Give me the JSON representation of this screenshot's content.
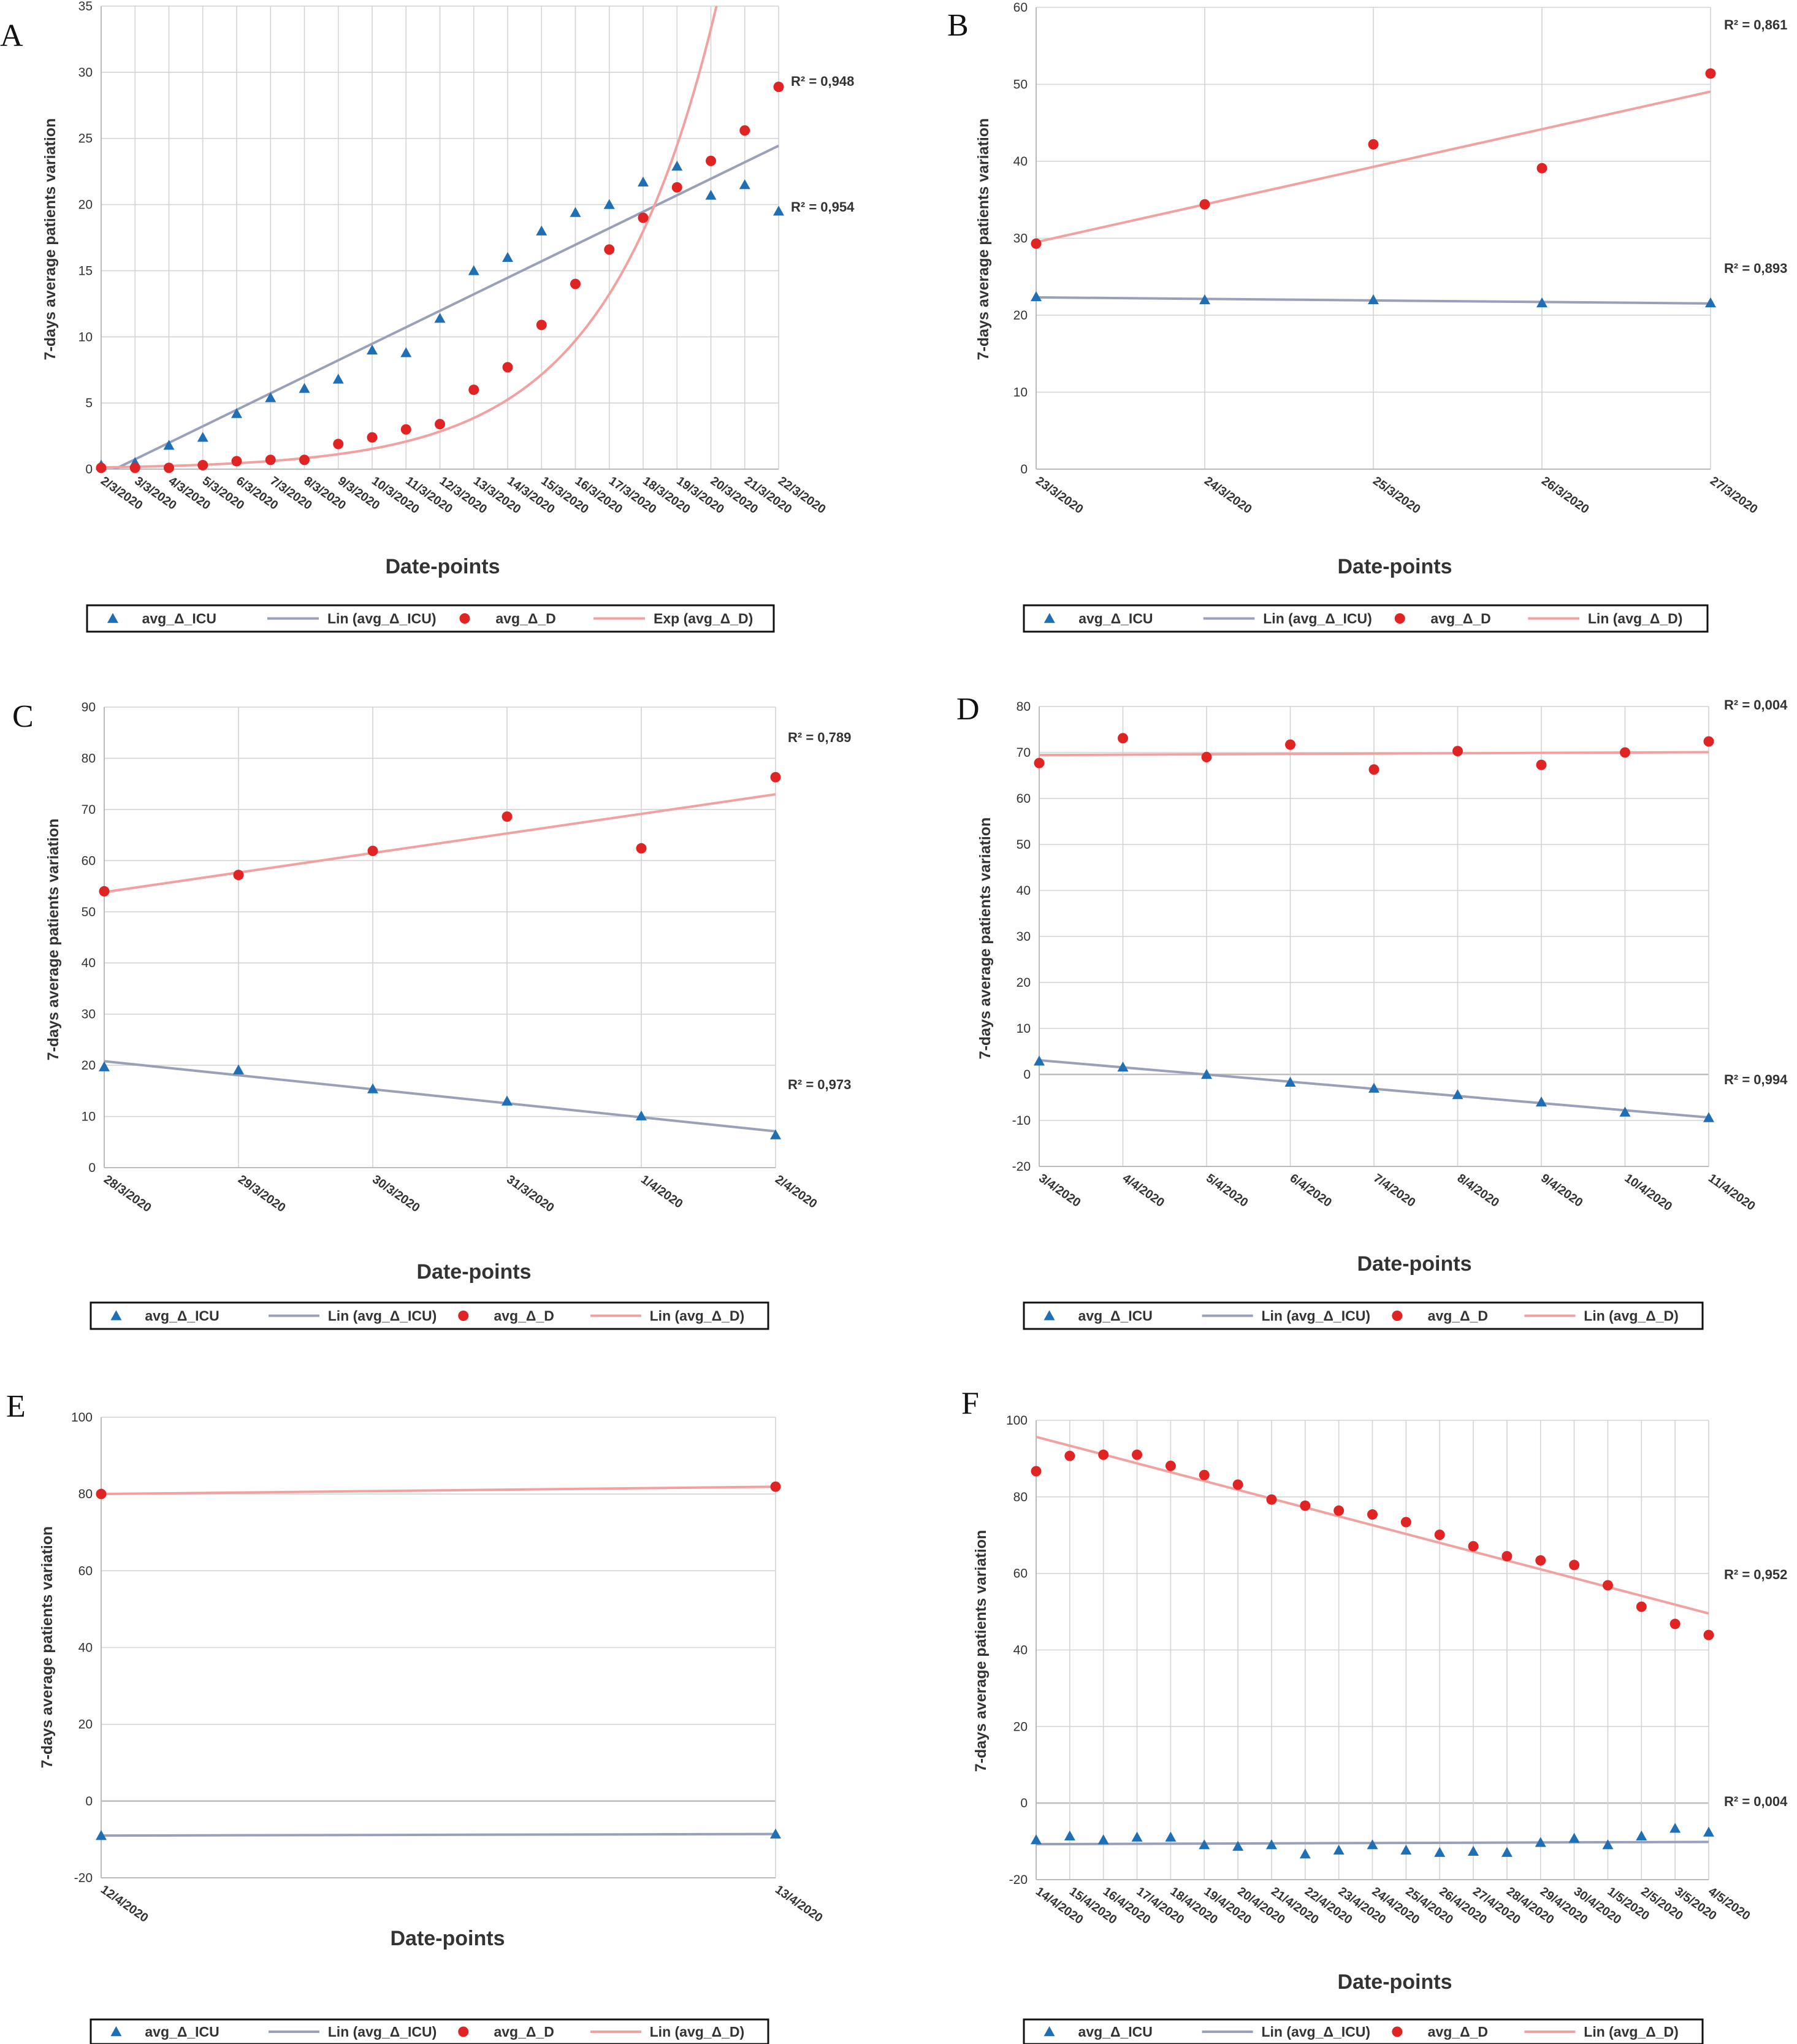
{
  "figure": {
    "legend_labels": {
      "icu": "avg_Δ_ICU",
      "icu_trend": "Lin (avg_Δ_ICU)",
      "d": "avg_Δ_D",
      "d_trend_lin": "Lin (avg_Δ_D)",
      "d_trend_exp": "Exp (avg_Δ_D)"
    },
    "colors": {
      "icu": "#1f6fb5",
      "icu_trend": "#9aa0b8",
      "d": "#e02424",
      "d_trend": "#f2a1a1",
      "grid": "#d4d4d4"
    }
  },
  "chart_data": [
    {
      "panel": "A",
      "type": "scatter",
      "ylabel": "7-days average patients variation",
      "xlabel": "Date-points",
      "ylim": [
        0,
        35
      ],
      "yticks": [
        0,
        5,
        10,
        15,
        20,
        25,
        30,
        35
      ],
      "categories": [
        "2/3/2020",
        "3/3/2020",
        "4/3/2020",
        "5/3/2020",
        "6/3/2020",
        "7/3/2020",
        "8/3/2020",
        "9/3/2020",
        "10/3/2020",
        "11/3/2020",
        "12/3/2020",
        "13/3/2020",
        "14/3/2020",
        "15/3/2020",
        "16/3/2020",
        "17/3/2020",
        "18/3/2020",
        "19/3/2020",
        "20/3/2020",
        "21/3/2020",
        "22/3/2020"
      ],
      "series": [
        {
          "name": "avg_Δ_ICU",
          "values": [
            0.3,
            0.5,
            1.8,
            2.4,
            4.2,
            5.4,
            6.1,
            6.8,
            9.0,
            8.8,
            11.4,
            15.0,
            16.0,
            18.0,
            19.4,
            20.0,
            21.7,
            22.9,
            20.7,
            21.5,
            19.5
          ],
          "trend": "linear",
          "r2": "R² = 0,954"
        },
        {
          "name": "avg_Δ_D",
          "values": [
            0.1,
            0.1,
            0.1,
            0.3,
            0.6,
            0.7,
            0.7,
            1.9,
            2.4,
            3.0,
            3.4,
            6.0,
            7.7,
            10.9,
            14.0,
            16.6,
            19.0,
            21.3,
            23.3,
            25.6,
            28.9
          ],
          "trend": "exponential",
          "r2": "R² = 0,948"
        }
      ]
    },
    {
      "panel": "B",
      "type": "scatter",
      "ylabel": "7-days average patients variation",
      "xlabel": "Date-points",
      "ylim": [
        0,
        60
      ],
      "yticks": [
        0,
        10,
        20,
        30,
        40,
        50,
        60
      ],
      "categories": [
        "23/3/2020",
        "24/3/2020",
        "25/3/2020",
        "26/3/2020",
        "27/3/2020"
      ],
      "series": [
        {
          "name": "avg_Δ_ICU",
          "values": [
            22.4,
            22.0,
            22.0,
            21.6,
            21.6
          ],
          "trend": "linear",
          "r2": "R² = 0,893"
        },
        {
          "name": "avg_Δ_D",
          "values": [
            29.3,
            34.4,
            42.2,
            39.1,
            51.4
          ],
          "trend": "linear",
          "r2": "R² = 0,861"
        }
      ]
    },
    {
      "panel": "C",
      "type": "scatter",
      "ylabel": "7-days average patients variation",
      "xlabel": "Date-points",
      "ylim": [
        0,
        90
      ],
      "yticks": [
        0,
        10,
        20,
        30,
        40,
        50,
        60,
        70,
        80,
        90
      ],
      "categories": [
        "28/3/2020",
        "29/3/2020",
        "30/3/2020",
        "31/3/2020",
        "1/4/2020",
        "2/4/2020"
      ],
      "series": [
        {
          "name": "avg_Δ_ICU",
          "values": [
            19.7,
            19.1,
            15.4,
            13.0,
            10.1,
            6.4
          ],
          "trend": "linear",
          "r2": "R² = 0,973"
        },
        {
          "name": "avg_Δ_D",
          "values": [
            54.0,
            57.2,
            61.9,
            68.6,
            62.4,
            76.3
          ],
          "trend": "linear",
          "r2": "R² = 0,789"
        }
      ]
    },
    {
      "panel": "D",
      "type": "scatter",
      "ylabel": "7-days average patients variation",
      "xlabel": "Date-points",
      "ylim": [
        -20,
        80
      ],
      "yticks": [
        -20,
        -10,
        0,
        10,
        20,
        30,
        40,
        50,
        60,
        70,
        80
      ],
      "categories": [
        "3/4/2020",
        "4/4/2020",
        "5/4/2020",
        "6/4/2020",
        "7/4/2020",
        "8/4/2020",
        "9/4/2020",
        "10/4/2020",
        "11/4/2020"
      ],
      "series": [
        {
          "name": "avg_Δ_ICU",
          "values": [
            2.9,
            1.6,
            0.0,
            -1.7,
            -3.0,
            -4.4,
            -6.0,
            -8.2,
            -9.4
          ],
          "trend": "linear",
          "r2": "R² = 0,994"
        },
        {
          "name": "avg_Δ_D",
          "values": [
            67.7,
            73.1,
            69.0,
            71.7,
            66.3,
            70.3,
            67.3,
            70.0,
            72.4
          ],
          "trend": "linear",
          "r2": "R² = 0,004"
        }
      ]
    },
    {
      "panel": "E",
      "type": "scatter",
      "ylabel": "7-days average patients variation",
      "xlabel": "Date-points",
      "ylim": [
        -20,
        100
      ],
      "yticks": [
        -20,
        0,
        20,
        40,
        60,
        80,
        100
      ],
      "categories": [
        "12/4/2020",
        "13/4/2020"
      ],
      "series": [
        {
          "name": "avg_Δ_ICU",
          "values": [
            -9.0,
            -8.6
          ],
          "trend": "linear",
          "r2": ""
        },
        {
          "name": "avg_Δ_D",
          "values": [
            80.0,
            81.9
          ],
          "trend": "linear",
          "r2": ""
        }
      ]
    },
    {
      "panel": "F",
      "type": "scatter",
      "ylabel": "7-days average patients variation",
      "xlabel": "Date-points",
      "ylim": [
        -20,
        100
      ],
      "yticks": [
        -20,
        0,
        20,
        40,
        60,
        80,
        100
      ],
      "categories": [
        "14/4/2020",
        "15/4/2020",
        "16/4/2020",
        "17/4/2020",
        "18/4/2020",
        "19/4/2020",
        "20/4/2020",
        "21/4/2020",
        "22/4/2020",
        "23/4/2020",
        "24/4/2020",
        "25/4/2020",
        "26/4/2020",
        "27/4/2020",
        "28/4/2020",
        "29/4/2020",
        "30/4/2020",
        "1/5/2020",
        "2/5/2020",
        "3/5/2020",
        "4/5/2020"
      ],
      "series": [
        {
          "name": "avg_Δ_ICU",
          "values": [
            -9.6,
            -8.6,
            -9.6,
            -8.9,
            -8.9,
            -10.9,
            -11.3,
            -10.9,
            -13.3,
            -12.3,
            -10.9,
            -12.3,
            -12.9,
            -12.6,
            -12.9,
            -10.3,
            -9.2,
            -10.9,
            -8.6,
            -6.6,
            -7.6
          ],
          "trend": "linear",
          "r2": "R² = 0,004"
        },
        {
          "name": "avg_Δ_D",
          "values": [
            86.7,
            90.7,
            91.0,
            91.0,
            88.1,
            85.7,
            83.2,
            79.3,
            77.7,
            76.4,
            75.4,
            73.4,
            70.1,
            67.1,
            64.5,
            63.4,
            62.2,
            56.9,
            51.3,
            46.8,
            43.9
          ],
          "trend": "linear",
          "r2": "R² = 0,952"
        }
      ]
    }
  ]
}
